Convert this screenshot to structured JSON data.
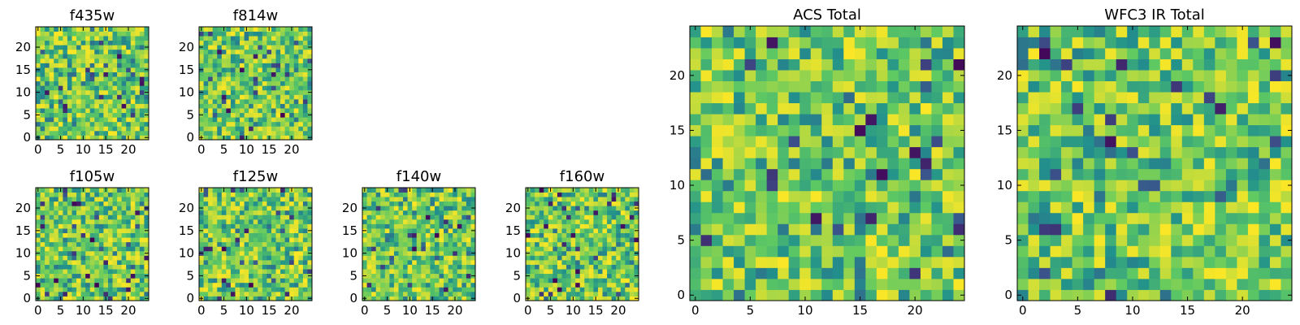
{
  "chart_data": [
    {
      "type": "heatmap",
      "title": "f435w",
      "xlabel": "",
      "ylabel": "",
      "xlim": [
        0,
        25
      ],
      "ylim": [
        0,
        25
      ],
      "xticks": [
        "0",
        "5",
        "10",
        "15",
        "20"
      ],
      "yticks": [
        "0",
        "5",
        "10",
        "15",
        "20"
      ],
      "grid": false,
      "pixels": "per-pixel values not recoverable from the image; rendered as a 25x25 noise field"
    },
    {
      "type": "heatmap",
      "title": "f814w",
      "xlabel": "",
      "ylabel": "",
      "xlim": [
        0,
        25
      ],
      "ylim": [
        0,
        25
      ],
      "xticks": [
        "0",
        "5",
        "10",
        "15",
        "20"
      ],
      "yticks": [
        "0",
        "5",
        "10",
        "15",
        "20"
      ],
      "grid": false,
      "pixels": "per-pixel values not recoverable from the image; rendered as a 25x25 noise field"
    },
    {
      "type": "heatmap",
      "title": "f105w",
      "xlabel": "",
      "ylabel": "",
      "xlim": [
        0,
        25
      ],
      "ylim": [
        0,
        25
      ],
      "xticks": [
        "0",
        "5",
        "10",
        "15",
        "20"
      ],
      "yticks": [
        "0",
        "5",
        "10",
        "15",
        "20"
      ],
      "grid": false,
      "pixels": "per-pixel values not recoverable from the image; rendered as a 25x25 noise field"
    },
    {
      "type": "heatmap",
      "title": "f125w",
      "xlabel": "",
      "ylabel": "",
      "xlim": [
        0,
        25
      ],
      "ylim": [
        0,
        25
      ],
      "xticks": [
        "0",
        "5",
        "10",
        "15",
        "20"
      ],
      "yticks": [
        "0",
        "5",
        "10",
        "15",
        "20"
      ],
      "grid": false,
      "pixels": "per-pixel values not recoverable from the image; rendered as a 25x25 noise field"
    },
    {
      "type": "heatmap",
      "title": "f140w",
      "xlabel": "",
      "ylabel": "",
      "xlim": [
        0,
        25
      ],
      "ylim": [
        0,
        25
      ],
      "xticks": [
        "0",
        "5",
        "10",
        "15",
        "20"
      ],
      "yticks": [
        "0",
        "5",
        "10",
        "15",
        "20"
      ],
      "grid": false,
      "pixels": "per-pixel values not recoverable from the image; rendered as a 25x25 noise field"
    },
    {
      "type": "heatmap",
      "title": "f160w",
      "xlabel": "",
      "ylabel": "",
      "xlim": [
        0,
        25
      ],
      "ylim": [
        0,
        25
      ],
      "xticks": [
        "0",
        "5",
        "10",
        "15",
        "20"
      ],
      "yticks": [
        "0",
        "5",
        "10",
        "15",
        "20"
      ],
      "grid": false,
      "pixels": "per-pixel values not recoverable from the image; rendered as a 25x25 noise field"
    },
    {
      "type": "heatmap",
      "title": "ACS Total",
      "xlabel": "",
      "ylabel": "",
      "xlim": [
        0,
        25
      ],
      "ylim": [
        0,
        25
      ],
      "xticks": [
        "0",
        "5",
        "10",
        "15",
        "20"
      ],
      "yticks": [
        "0",
        "5",
        "10",
        "15",
        "20"
      ],
      "grid": false,
      "pixels": "per-pixel values not recoverable from the image; rendered as a 25x25 noise field"
    },
    {
      "type": "heatmap",
      "title": "WFC3 IR Total",
      "xlabel": "",
      "ylabel": "",
      "xlim": [
        0,
        25
      ],
      "ylim": [
        0,
        25
      ],
      "xticks": [
        "0",
        "5",
        "10",
        "15",
        "20"
      ],
      "yticks": [
        "0",
        "5",
        "10",
        "15",
        "20"
      ],
      "grid": false,
      "pixels": "per-pixel values not recoverable from the image; rendered as a 25x25 noise field"
    }
  ],
  "colormap": "viridis",
  "colormap_stops": [
    "#440154",
    "#3b528b",
    "#21918c",
    "#5ec962",
    "#fde725"
  ]
}
